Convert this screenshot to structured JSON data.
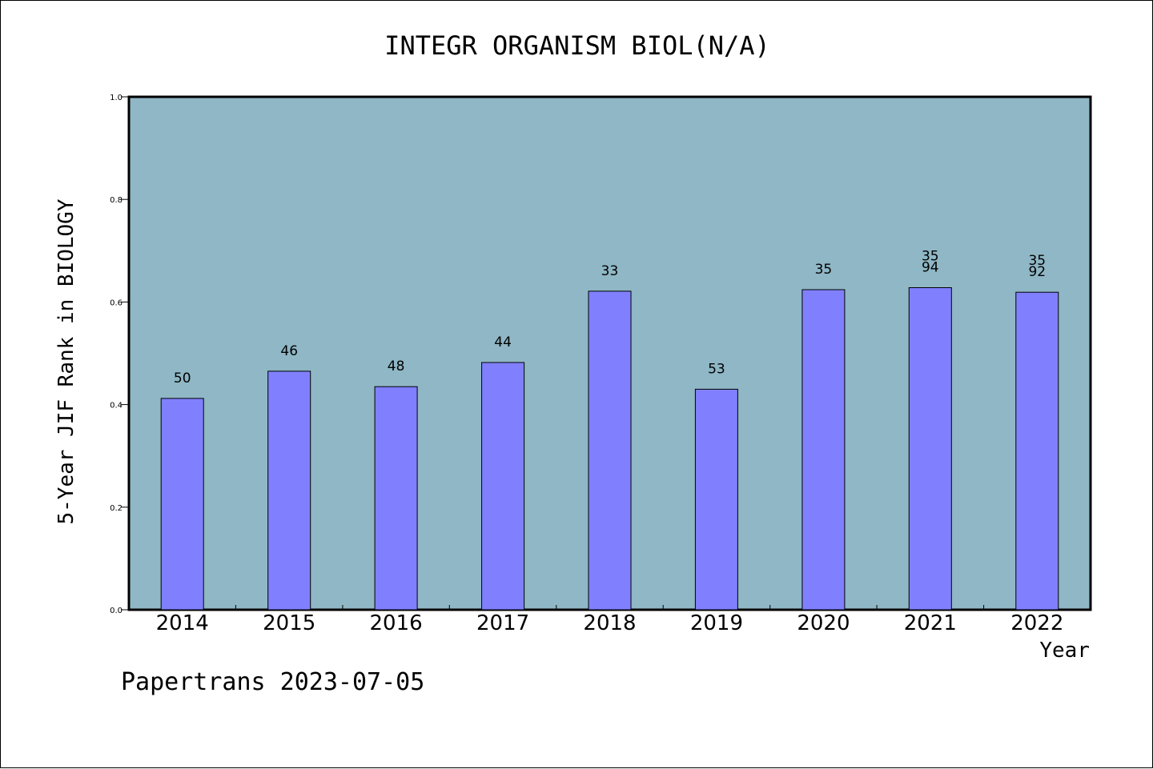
{
  "chart_data": {
    "type": "bar",
    "title": "INTEGR ORGANISM BIOL(N/A)",
    "xlabel": "Year",
    "ylabel": "5-Year JIF Rank in BIOLOGY",
    "ylim": [
      0,
      1.0
    ],
    "yticks": [
      "0.0",
      "0.2",
      "0.4",
      "0.6",
      "0.8",
      "1.0"
    ],
    "categories": [
      "2014",
      "2015",
      "2016",
      "2017",
      "2018",
      "2019",
      "2020",
      "2021",
      "2022"
    ],
    "values": [
      0.412,
      0.465,
      0.435,
      0.482,
      0.621,
      0.43,
      0.624,
      0.628,
      0.619
    ],
    "data_labels": [
      [
        "50"
      ],
      [
        "46"
      ],
      [
        "48"
      ],
      [
        "44"
      ],
      [
        "33"
      ],
      [
        "53"
      ],
      [
        "35"
      ],
      [
        "35",
        "94"
      ],
      [
        "35",
        "92"
      ]
    ],
    "grid": false,
    "colors": {
      "plot_bg": "#8fb7c5",
      "bar": "#8080ff",
      "bar_edge": "#000000",
      "axis": "#000000"
    }
  },
  "footer": {
    "text": "Papertrans 2023-07-05"
  }
}
